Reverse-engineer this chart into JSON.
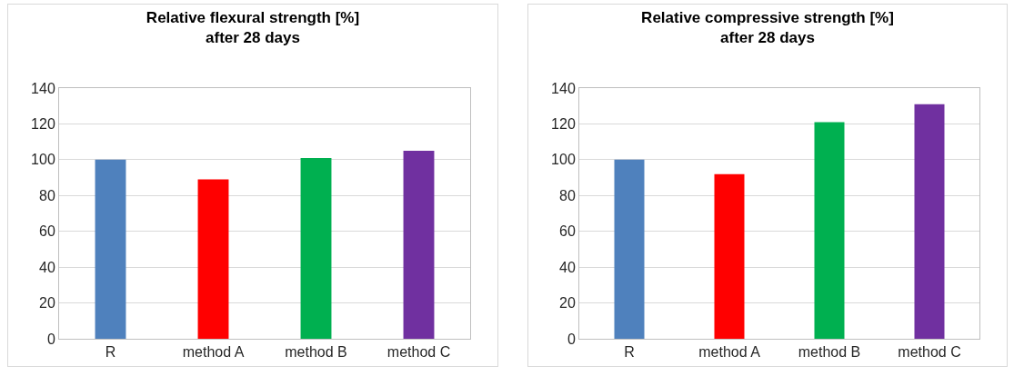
{
  "chart_data": [
    {
      "type": "bar",
      "title": "Relative flexural strength [%]\nafter 28 days",
      "categories": [
        "R",
        "method A",
        "method B",
        "method C"
      ],
      "values": [
        100,
        89,
        101,
        105
      ],
      "colors": [
        "#4f81bd",
        "#ff0000",
        "#00b050",
        "#7030a0"
      ],
      "ylim": [
        0,
        140
      ],
      "yticks": [
        0,
        20,
        40,
        60,
        80,
        100,
        120,
        140
      ],
      "grid": "y"
    },
    {
      "type": "bar",
      "title": "Relative compressive strength [%]\nafter 28 days",
      "categories": [
        "R",
        "method A",
        "method B",
        "method C"
      ],
      "values": [
        100,
        92,
        121,
        131
      ],
      "colors": [
        "#4f81bd",
        "#ff0000",
        "#00b050",
        "#7030a0"
      ],
      "ylim": [
        0,
        140
      ],
      "yticks": [
        0,
        20,
        40,
        60,
        80,
        100,
        120,
        140
      ],
      "grid": "y"
    }
  ]
}
